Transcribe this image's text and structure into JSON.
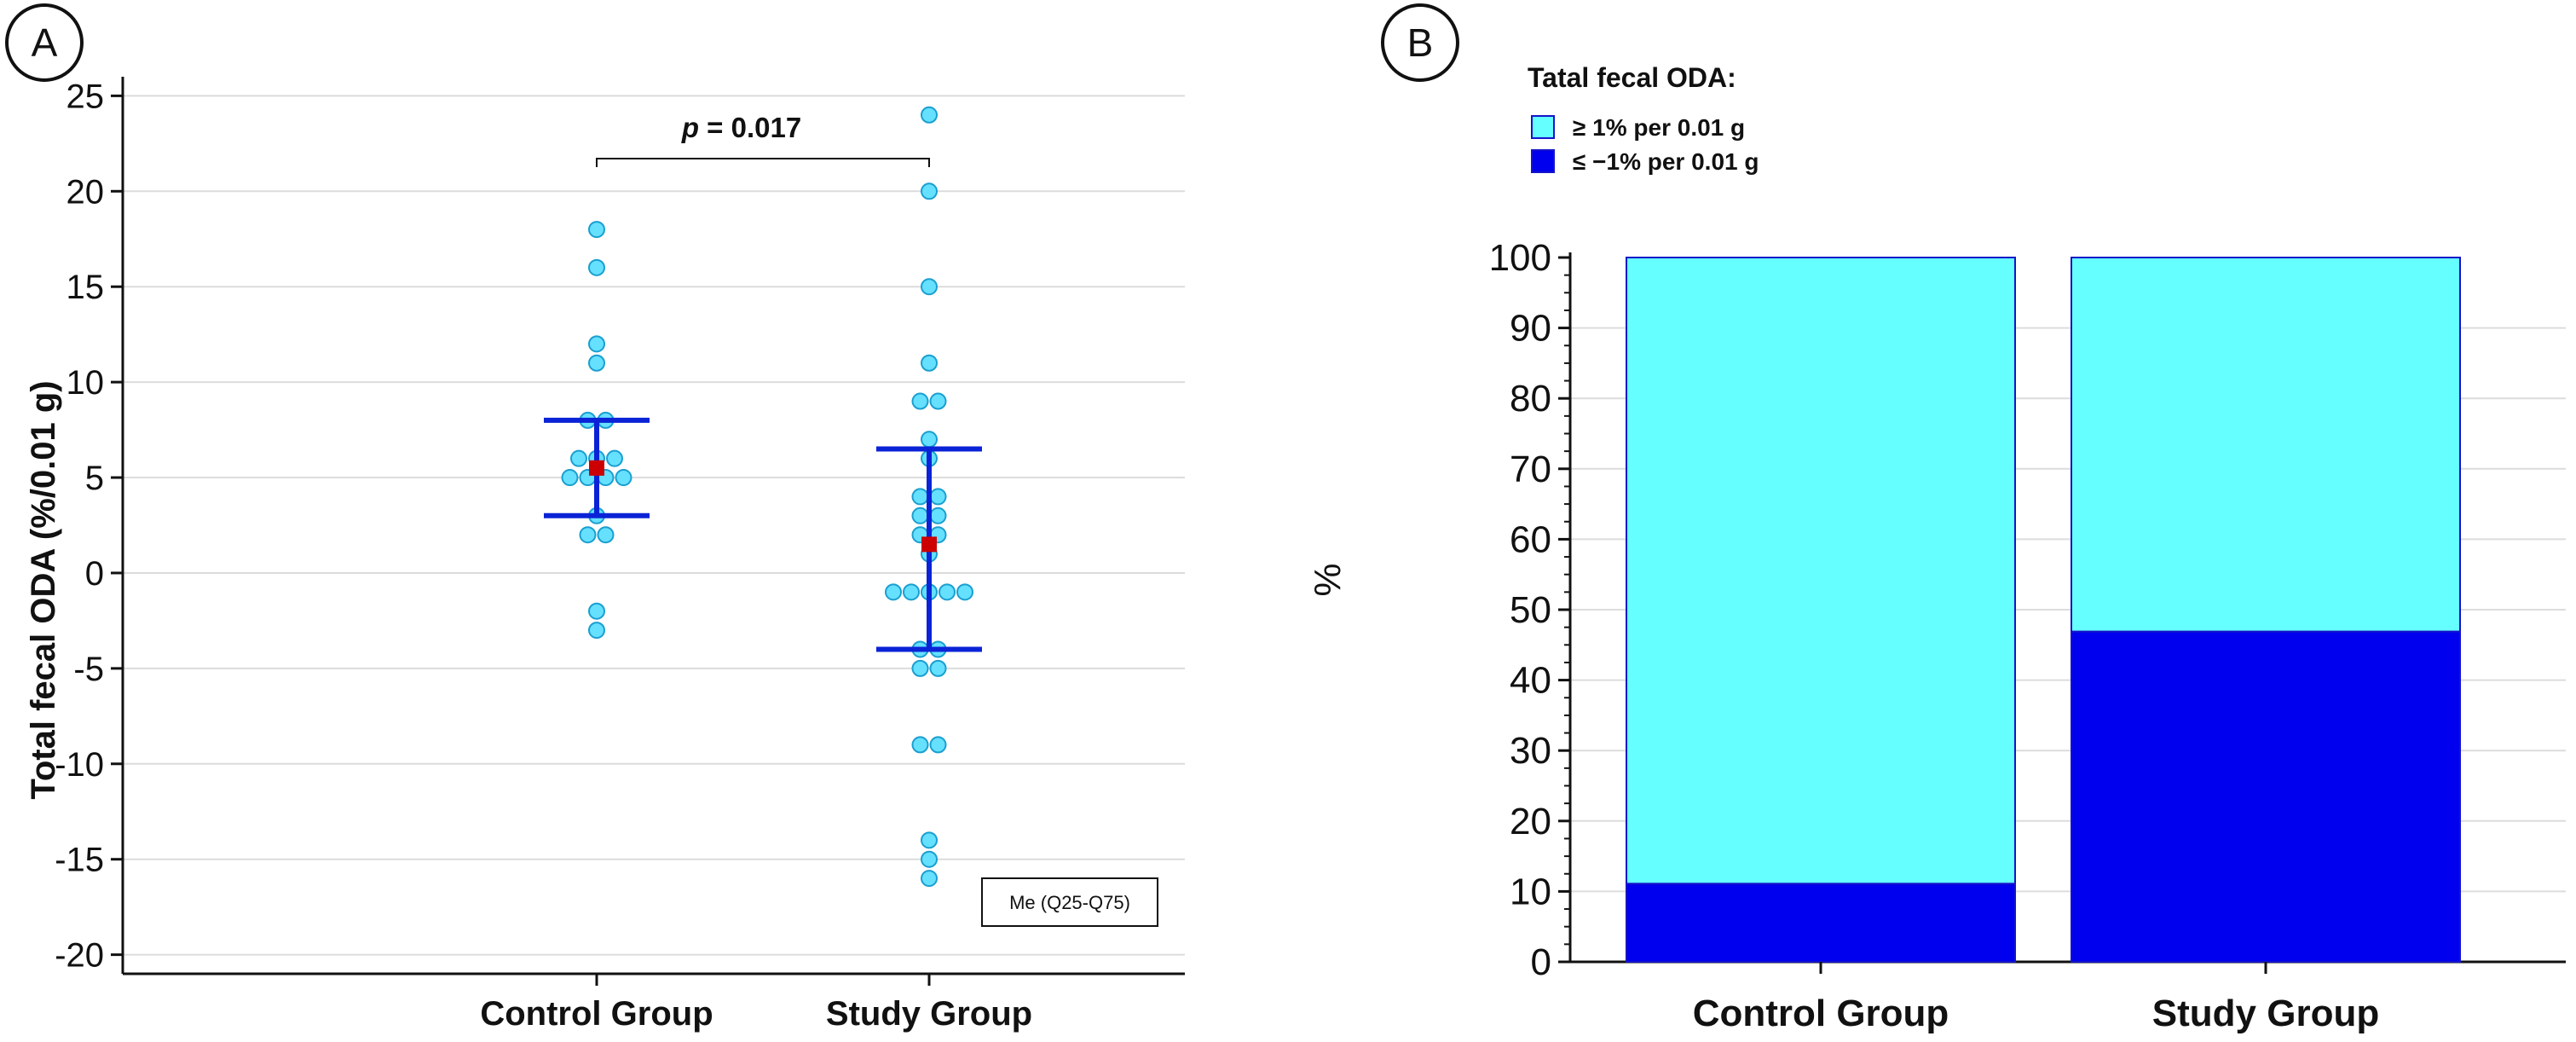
{
  "panels": {
    "a": {
      "label": "A"
    },
    "b": {
      "label": "B"
    }
  },
  "colors": {
    "point_fill": "#66e0ff",
    "point_stroke": "#1a9fd0",
    "median_marker": "#cc0000",
    "iqr_line": "#0b23d6",
    "cyan_fill": "#66ffff",
    "blue_fill": "#0000ee",
    "bar_stroke": "#1414c8",
    "axis": "#111111",
    "grid": "#dcdcdc",
    "text": "#111111"
  },
  "chart_data": [
    {
      "type": "scatter",
      "title": "",
      "ylabel": "Total fecal ODA (%/0.01 g)",
      "xlabel": "",
      "ylim": [
        -21,
        26
      ],
      "yticks": [
        25,
        20,
        15,
        10,
        5,
        0,
        -5,
        -10,
        -15,
        -20
      ],
      "ytick_labels": [
        "25",
        "20",
        "15",
        "10",
        "5",
        "0",
        "-5",
        "-10",
        "-15",
        "-20"
      ],
      "grid": true,
      "categories": [
        "Control Group",
        "Study Group"
      ],
      "series": [
        {
          "name": "Control Group",
          "values": [
            18,
            16,
            12,
            11,
            8,
            8,
            6,
            6,
            6,
            5,
            5,
            5,
            5,
            3,
            2,
            2,
            -2,
            -3
          ],
          "median": 5.5,
          "q25": 3,
          "q75": 8
        },
        {
          "name": "Study Group",
          "values": [
            24,
            20,
            15,
            11,
            9,
            9,
            7,
            6,
            4,
            4,
            3,
            3,
            2,
            2,
            1,
            -1,
            -1,
            -1,
            -1,
            -1,
            -4,
            -4,
            -5,
            -5,
            -9,
            -9,
            -14,
            -15,
            -16
          ],
          "median": 1.5,
          "q25": -4,
          "q75": 6.5
        }
      ],
      "annotation": {
        "prefix": "p",
        "text": " = 0.017"
      },
      "legend": {
        "text": "Me (Q25-Q75)",
        "placement": "bottom-right"
      }
    },
    {
      "type": "bar",
      "stacked": true,
      "title": "",
      "ylabel": "%",
      "xlabel": "",
      "ylim": [
        0,
        100
      ],
      "yticks": [
        100,
        90,
        80,
        70,
        60,
        50,
        40,
        30,
        20,
        10,
        0
      ],
      "ytick_labels": [
        "100",
        "90",
        "80",
        "70",
        "60",
        "50",
        "40",
        "30",
        "20",
        "10",
        "0"
      ],
      "grid": true,
      "categories": [
        "Control Group",
        "Study Group"
      ],
      "legend": {
        "title": "Tatal fecal ODA:",
        "placement": "top-left",
        "entries": [
          "≥ 1% per 0.01 g",
          "≤ −1% per 0.01 g"
        ]
      },
      "series": [
        {
          "name": "≤ −1% per 0.01 g",
          "values": [
            11.1,
            46.9
          ]
        },
        {
          "name": "≥ 1% per 0.01 g",
          "values": [
            88.9,
            53.1
          ]
        }
      ]
    }
  ]
}
